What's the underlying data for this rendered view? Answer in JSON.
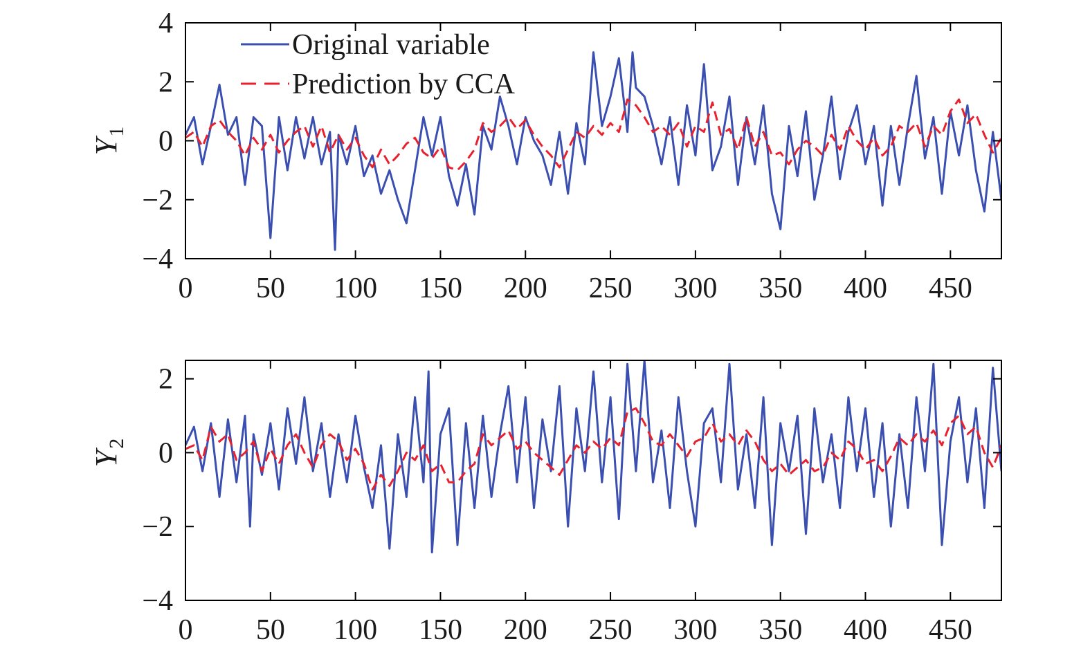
{
  "colors": {
    "original": "#3a4fb0",
    "prediction": "#e8212f",
    "axis": "#000000"
  },
  "chart_data": [
    {
      "type": "line",
      "ylabel_main": "Y",
      "ylabel_sub": "1",
      "xlim": [
        0,
        480
      ],
      "ylim": [
        -4,
        4
      ],
      "xticks": [
        0,
        50,
        100,
        150,
        200,
        250,
        300,
        350,
        400,
        450
      ],
      "yticks": [
        -4,
        -2,
        0,
        2,
        4
      ],
      "ytick_labels": [
        "−4",
        "−2",
        "0",
        "2",
        "4"
      ],
      "legend": {
        "position": "top-left",
        "entries": [
          "Original variable",
          "Prediction by CCA"
        ]
      },
      "series": [
        {
          "name": "Original variable",
          "style": "solid",
          "x": [
            0,
            5,
            10,
            15,
            20,
            25,
            30,
            35,
            40,
            45,
            50,
            55,
            60,
            65,
            70,
            75,
            80,
            85,
            88,
            90,
            95,
            100,
            105,
            110,
            115,
            120,
            125,
            130,
            135,
            140,
            145,
            150,
            155,
            160,
            165,
            170,
            175,
            180,
            185,
            190,
            195,
            200,
            205,
            210,
            215,
            220,
            225,
            230,
            235,
            240,
            245,
            250,
            255,
            260,
            263,
            265,
            270,
            275,
            280,
            285,
            290,
            295,
            300,
            305,
            310,
            315,
            320,
            325,
            330,
            335,
            340,
            345,
            350,
            355,
            360,
            365,
            370,
            375,
            380,
            385,
            390,
            395,
            400,
            405,
            410,
            415,
            420,
            425,
            430,
            435,
            440,
            445,
            450,
            455,
            460,
            465,
            470,
            475,
            480
          ],
          "values": [
            0.2,
            0.8,
            -0.8,
            0.5,
            1.9,
            0.2,
            0.8,
            -1.5,
            0.8,
            0.5,
            -3.3,
            0.8,
            -1.0,
            0.8,
            -0.6,
            0.8,
            -0.8,
            0.3,
            -3.7,
            0.2,
            -0.8,
            0.5,
            -1.2,
            -0.5,
            -1.8,
            -1.0,
            -2.0,
            -2.8,
            -1.0,
            0.8,
            -0.5,
            0.8,
            -1.2,
            -2.2,
            -0.8,
            -2.5,
            0.5,
            -0.3,
            1.5,
            0.5,
            -0.8,
            0.8,
            0.0,
            -0.5,
            -1.5,
            0.3,
            -1.8,
            0.6,
            -0.8,
            3.0,
            0.5,
            1.5,
            2.8,
            0.3,
            3.0,
            1.8,
            1.5,
            0.5,
            -0.8,
            0.8,
            -1.5,
            1.2,
            -0.5,
            2.6,
            -1.0,
            -0.2,
            1.5,
            -1.5,
            0.8,
            -0.8,
            1.2,
            -1.8,
            -3.0,
            0.5,
            -1.2,
            1.0,
            -2.0,
            -0.5,
            1.5,
            -1.3,
            0.3,
            1.2,
            -0.8,
            0.5,
            -2.2,
            0.5,
            -1.5,
            0.5,
            2.2,
            -0.6,
            0.8,
            -1.8,
            1.0,
            -0.5,
            1.2,
            -1.0,
            -2.4,
            0.3,
            -2.0
          ]
        },
        {
          "name": "Prediction by CCA",
          "style": "dashed",
          "x": [
            0,
            5,
            10,
            15,
            20,
            25,
            30,
            35,
            40,
            45,
            50,
            55,
            60,
            65,
            70,
            75,
            80,
            85,
            90,
            95,
            100,
            105,
            110,
            115,
            120,
            125,
            130,
            135,
            140,
            145,
            150,
            155,
            160,
            165,
            170,
            175,
            180,
            185,
            190,
            195,
            200,
            205,
            210,
            215,
            220,
            225,
            230,
            235,
            240,
            245,
            250,
            255,
            260,
            265,
            270,
            275,
            280,
            285,
            290,
            295,
            300,
            305,
            310,
            315,
            320,
            325,
            330,
            335,
            340,
            345,
            350,
            355,
            360,
            365,
            370,
            375,
            380,
            385,
            390,
            395,
            400,
            405,
            410,
            415,
            420,
            425,
            430,
            435,
            440,
            445,
            450,
            455,
            460,
            465,
            470,
            475,
            480
          ],
          "values": [
            0.1,
            0.3,
            -0.2,
            0.5,
            0.7,
            0.3,
            0.0,
            -0.5,
            0.1,
            -0.3,
            0.2,
            -0.4,
            0.0,
            0.3,
            0.5,
            -0.2,
            0.5,
            -0.4,
            0.2,
            -0.3,
            0.1,
            -0.5,
            -0.9,
            -0.3,
            -0.8,
            -0.5,
            -0.1,
            0.1,
            -0.4,
            -0.6,
            -0.2,
            -0.9,
            -1.0,
            -0.7,
            -0.3,
            0.6,
            0.3,
            0.5,
            0.8,
            0.4,
            0.7,
            0.2,
            -0.2,
            -0.5,
            -0.9,
            -0.3,
            0.3,
            0.1,
            0.5,
            0.2,
            0.6,
            0.3,
            1.4,
            1.2,
            0.8,
            0.3,
            0.5,
            0.2,
            0.6,
            -0.2,
            0.5,
            0.3,
            1.3,
            0.2,
            0.4,
            -0.3,
            0.8,
            -0.2,
            0.3,
            -0.5,
            -0.4,
            -0.8,
            -0.3,
            0.0,
            -0.2,
            -0.5,
            0.2,
            -0.3,
            0.5,
            0.0,
            -0.3,
            0.1,
            -0.5,
            -0.2,
            0.5,
            0.3,
            0.6,
            -0.2,
            0.5,
            0.2,
            1.0,
            1.4,
            0.6,
            0.9,
            0.2,
            -0.4,
            0.1
          ]
        }
      ]
    },
    {
      "type": "line",
      "ylabel_main": "Y",
      "ylabel_sub": "2",
      "xlim": [
        0,
        480
      ],
      "ylim": [
        -4,
        2.5
      ],
      "xticks": [
        0,
        50,
        100,
        150,
        200,
        250,
        300,
        350,
        400,
        450
      ],
      "yticks": [
        -4,
        -2,
        0,
        2
      ],
      "ytick_labels": [
        "−4",
        "−2",
        "0",
        "2"
      ],
      "series": [
        {
          "name": "Original variable",
          "style": "solid",
          "x": [
            0,
            5,
            10,
            15,
            20,
            25,
            30,
            35,
            38,
            40,
            45,
            50,
            55,
            60,
            65,
            70,
            75,
            80,
            85,
            90,
            95,
            100,
            105,
            110,
            115,
            120,
            125,
            130,
            135,
            140,
            143,
            145,
            150,
            155,
            160,
            165,
            170,
            175,
            180,
            185,
            190,
            195,
            200,
            205,
            210,
            215,
            220,
            225,
            230,
            235,
            240,
            245,
            250,
            255,
            260,
            265,
            270,
            275,
            280,
            285,
            290,
            295,
            300,
            305,
            310,
            315,
            320,
            325,
            330,
            335,
            340,
            345,
            350,
            355,
            360,
            365,
            370,
            375,
            380,
            385,
            390,
            395,
            400,
            405,
            410,
            415,
            420,
            425,
            430,
            435,
            440,
            445,
            450,
            455,
            460,
            465,
            470,
            475,
            480
          ],
          "values": [
            0.2,
            0.7,
            -0.5,
            0.8,
            -1.2,
            0.9,
            -0.8,
            1.0,
            -2.0,
            0.5,
            -0.6,
            0.8,
            -1.0,
            1.2,
            -0.3,
            1.5,
            -0.5,
            0.8,
            -1.2,
            0.5,
            -0.8,
            1.0,
            -0.4,
            -1.5,
            0.2,
            -2.6,
            0.5,
            -1.2,
            1.5,
            -0.8,
            2.2,
            -2.7,
            0.5,
            1.2,
            -2.5,
            0.8,
            -1.5,
            1.0,
            -1.2,
            0.5,
            1.8,
            -0.8,
            1.5,
            -1.5,
            0.9,
            -0.5,
            1.8,
            -2.0,
            1.2,
            -0.5,
            2.2,
            -0.8,
            1.5,
            -1.8,
            2.4,
            -0.5,
            2.5,
            -0.8,
            0.6,
            -1.5,
            1.5,
            -0.5,
            -2.0,
            0.8,
            1.2,
            -0.8,
            2.4,
            -1.0,
            0.5,
            -1.5,
            1.5,
            -2.5,
            0.8,
            -0.5,
            1.0,
            -2.2,
            1.2,
            -0.8,
            0.5,
            -1.5,
            1.5,
            -0.5,
            1.2,
            -1.2,
            0.8,
            -2.0,
            0.5,
            -1.5,
            1.5,
            -0.5,
            2.4,
            -2.5,
            0.3,
            1.5,
            -0.8,
            1.2,
            -1.5,
            2.3,
            -0.5
          ]
        },
        {
          "name": "Prediction by CCA",
          "style": "dashed",
          "x": [
            0,
            5,
            10,
            15,
            20,
            25,
            30,
            35,
            40,
            45,
            50,
            55,
            60,
            65,
            70,
            75,
            80,
            85,
            90,
            95,
            100,
            105,
            110,
            115,
            120,
            125,
            130,
            135,
            140,
            145,
            150,
            155,
            160,
            165,
            170,
            175,
            180,
            185,
            190,
            195,
            200,
            205,
            210,
            215,
            220,
            225,
            230,
            235,
            240,
            245,
            250,
            255,
            260,
            265,
            270,
            275,
            280,
            285,
            290,
            295,
            300,
            305,
            310,
            315,
            320,
            325,
            330,
            335,
            340,
            345,
            350,
            355,
            360,
            365,
            370,
            375,
            380,
            385,
            390,
            395,
            400,
            405,
            410,
            415,
            420,
            425,
            430,
            435,
            440,
            445,
            450,
            455,
            460,
            465,
            470,
            475,
            480
          ],
          "values": [
            0.1,
            0.2,
            -0.2,
            0.7,
            0.3,
            0.5,
            -0.2,
            0.0,
            0.3,
            -0.5,
            0.1,
            -0.3,
            0.2,
            0.5,
            0.0,
            -0.4,
            0.2,
            0.5,
            0.3,
            -0.2,
            0.1,
            -0.3,
            -1.0,
            -0.6,
            -0.9,
            -0.5,
            0.0,
            -0.2,
            0.2,
            -0.5,
            -0.3,
            -0.8,
            -0.8,
            -0.5,
            -0.3,
            0.5,
            0.2,
            0.4,
            0.6,
            0.1,
            0.3,
            0.0,
            -0.2,
            -0.4,
            -0.6,
            -0.2,
            0.2,
            0.0,
            0.3,
            0.1,
            0.4,
            0.2,
            1.1,
            1.2,
            0.8,
            0.3,
            0.2,
            0.5,
            0.2,
            -0.1,
            0.3,
            0.4,
            0.8,
            0.3,
            0.5,
            0.2,
            0.6,
            0.3,
            -0.2,
            -0.5,
            -0.3,
            -0.6,
            -0.4,
            -0.2,
            -0.5,
            -0.4,
            0.0,
            -0.2,
            0.3,
            0.1,
            -0.3,
            -0.2,
            -0.5,
            -0.1,
            0.4,
            0.2,
            0.5,
            0.3,
            0.6,
            0.2,
            0.8,
            1.0,
            0.5,
            0.7,
            0.0,
            -0.4,
            0.2
          ]
        }
      ]
    }
  ]
}
